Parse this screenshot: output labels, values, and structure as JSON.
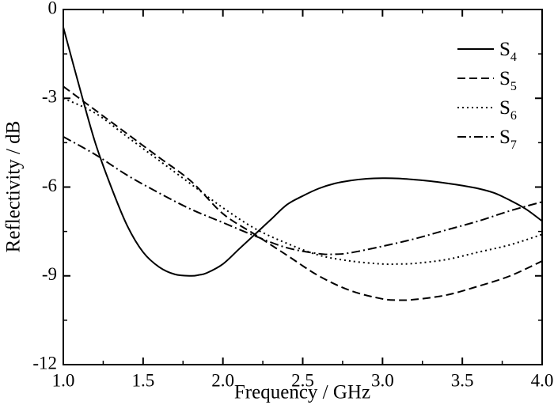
{
  "chart_data": {
    "type": "line",
    "title": "",
    "xlabel": "Frequency / GHz",
    "ylabel": "Reflectivity / dB",
    "xlim": [
      1.0,
      4.0
    ],
    "ylim": [
      -12,
      0
    ],
    "xticks": [
      "1.0",
      "1.5",
      "2.0",
      "2.5",
      "3.0",
      "3.5",
      "4.0"
    ],
    "yticks": [
      "0",
      "-3",
      "-6",
      "-9",
      "-12"
    ],
    "grid": false,
    "legend_position": "top-right",
    "series": [
      {
        "name": "S4",
        "name_base": "S",
        "name_sub": "4",
        "dash": "solid",
        "x": [
          1.0,
          1.1,
          1.2,
          1.3,
          1.4,
          1.5,
          1.6,
          1.7,
          1.8,
          1.85,
          1.9,
          2.0,
          2.1,
          2.2,
          2.3,
          2.4,
          2.5,
          2.6,
          2.7,
          2.8,
          2.9,
          3.0,
          3.1,
          3.2,
          3.3,
          3.4,
          3.5,
          3.6,
          3.7,
          3.8,
          3.9,
          4.0
        ],
        "values": [
          -0.6,
          -2.6,
          -4.5,
          -6.0,
          -7.3,
          -8.2,
          -8.7,
          -8.95,
          -9.0,
          -8.97,
          -8.9,
          -8.6,
          -8.1,
          -7.6,
          -7.1,
          -6.6,
          -6.3,
          -6.05,
          -5.88,
          -5.78,
          -5.72,
          -5.7,
          -5.71,
          -5.75,
          -5.8,
          -5.87,
          -5.95,
          -6.05,
          -6.2,
          -6.45,
          -6.75,
          -7.15
        ]
      },
      {
        "name": "S5",
        "name_base": "S",
        "name_sub": "5",
        "dash": "dashed",
        "x": [
          1.0,
          1.2,
          1.4,
          1.6,
          1.8,
          2.0,
          2.2,
          2.4,
          2.6,
          2.8,
          3.0,
          3.1,
          3.2,
          3.4,
          3.6,
          3.8,
          4.0
        ],
        "values": [
          -2.6,
          -3.4,
          -4.2,
          -5.0,
          -5.8,
          -6.9,
          -7.6,
          -8.3,
          -9.0,
          -9.5,
          -9.78,
          -9.82,
          -9.8,
          -9.65,
          -9.35,
          -9.0,
          -8.5
        ]
      },
      {
        "name": "S6",
        "name_base": "S",
        "name_sub": "6",
        "dash": "dotted",
        "x": [
          1.0,
          1.2,
          1.4,
          1.6,
          1.8,
          2.0,
          2.2,
          2.4,
          2.6,
          2.8,
          3.0,
          3.1,
          3.2,
          3.4,
          3.6,
          3.8,
          4.0
        ],
        "values": [
          -3.0,
          -3.5,
          -4.3,
          -5.1,
          -5.9,
          -6.7,
          -7.4,
          -7.9,
          -8.3,
          -8.5,
          -8.6,
          -8.6,
          -8.58,
          -8.45,
          -8.2,
          -7.95,
          -7.6
        ]
      },
      {
        "name": "S7",
        "name_base": "S",
        "name_sub": "7",
        "dash": "dashdot",
        "x": [
          1.0,
          1.2,
          1.4,
          1.6,
          1.8,
          2.0,
          2.2,
          2.4,
          2.6,
          2.7,
          2.8,
          3.0,
          3.2,
          3.4,
          3.6,
          3.8,
          4.0
        ],
        "values": [
          -4.3,
          -4.9,
          -5.6,
          -6.2,
          -6.75,
          -7.2,
          -7.65,
          -8.05,
          -8.25,
          -8.27,
          -8.22,
          -8.0,
          -7.75,
          -7.45,
          -7.15,
          -6.8,
          -6.5
        ]
      }
    ]
  }
}
